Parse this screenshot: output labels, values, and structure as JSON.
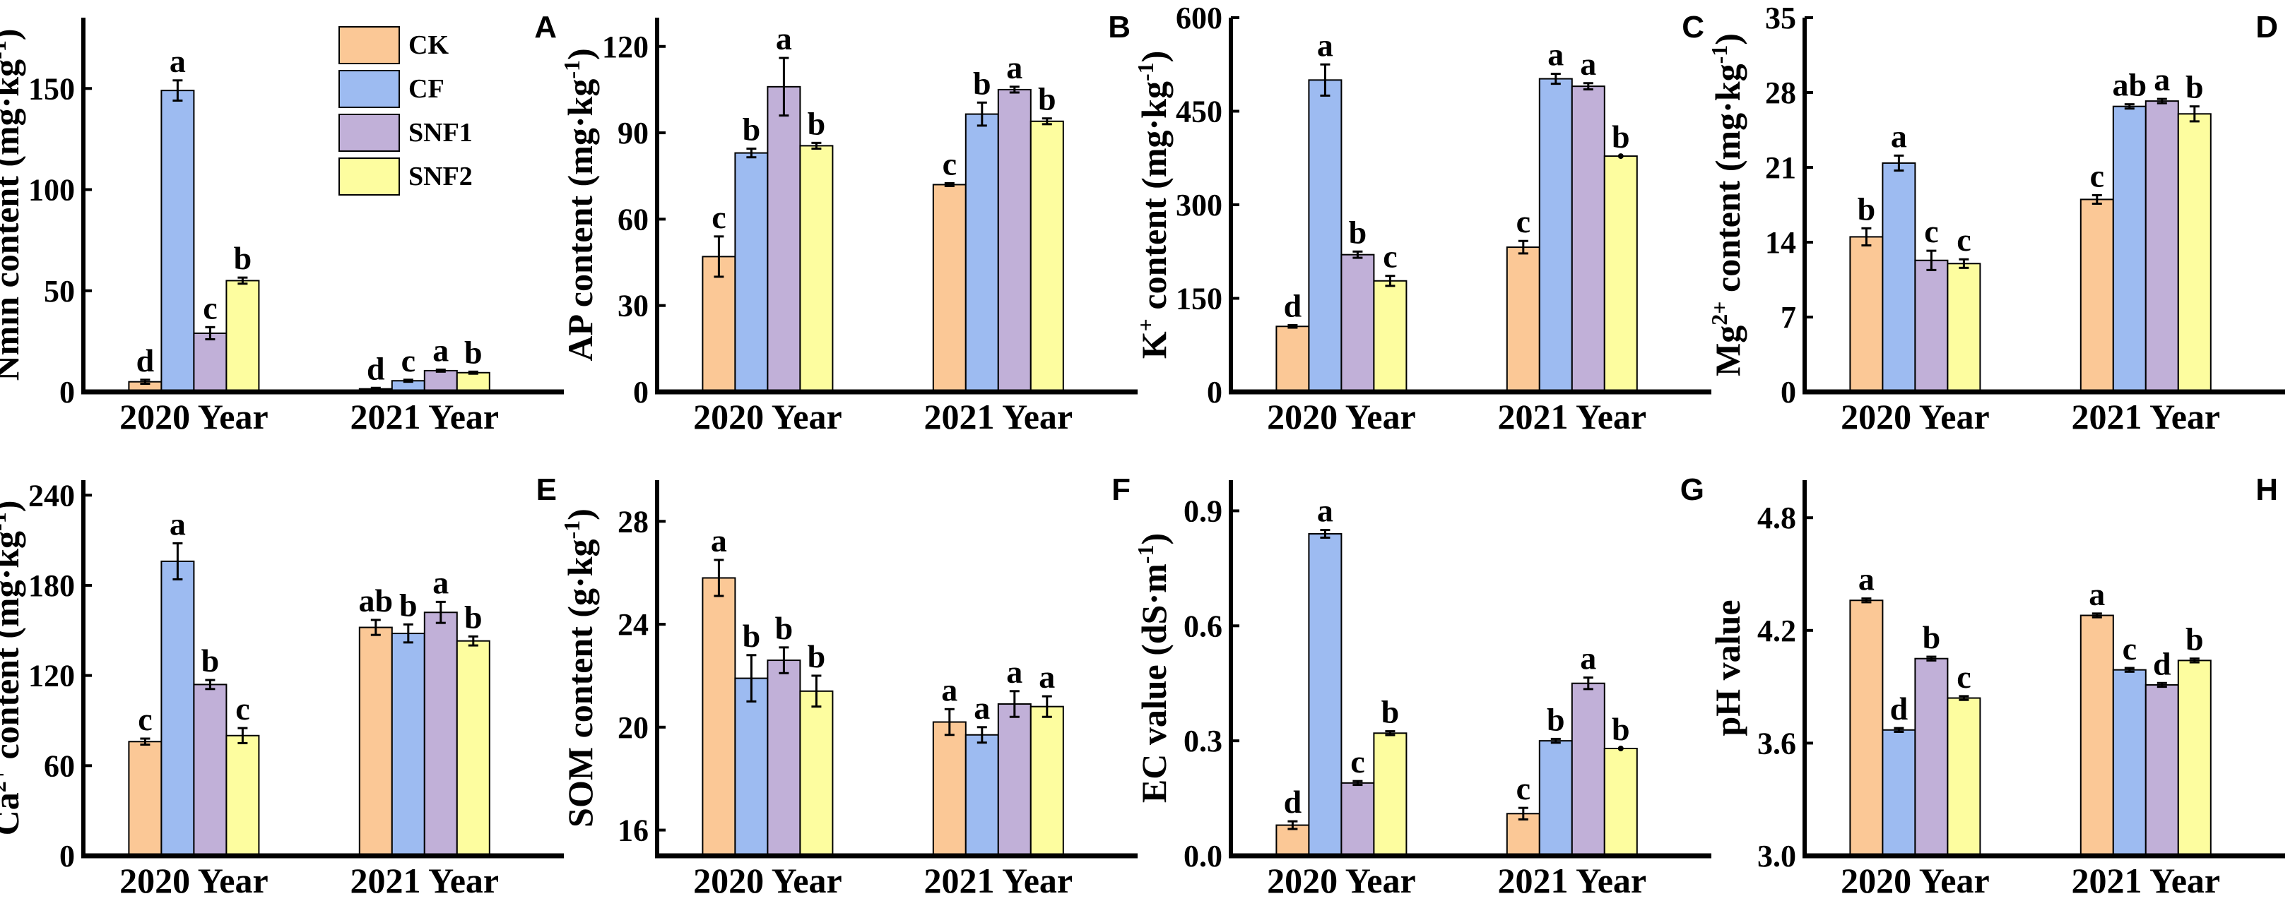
{
  "chart_data": {
    "type": "bar",
    "groups": [
      "2020 Year",
      "2021 Year"
    ],
    "series_names": [
      "CK",
      "CF",
      "SNF1",
      "SNF2"
    ],
    "colors": {
      "CK": "#fbc896",
      "CF": "#9dbbf1",
      "SNF1": "#c1b0d8",
      "SNF2": "#fdfd9f"
    },
    "legend": {
      "entries": [
        "CK",
        "CF",
        "SNF1",
        "SNF2"
      ],
      "placement": "top-right of panel A"
    },
    "panels": [
      {
        "label": "A",
        "ylabel": [
          {
            "t": "Nmin content (mg·kg"
          },
          {
            "t": "-1",
            "sup": true
          },
          {
            "t": ")"
          }
        ],
        "ylim": [
          0,
          185
        ],
        "yticks": [
          "0",
          "50",
          "100",
          "150"
        ],
        "ytick_values": [
          0,
          50,
          100,
          150
        ],
        "values": [
          [
            5,
            149,
            29,
            55
          ],
          [
            1.5,
            5.5,
            10.5,
            9.5
          ]
        ],
        "errors": [
          [
            1,
            5,
            3,
            1.5
          ],
          [
            0.5,
            0.5,
            0.5,
            0.5
          ]
        ],
        "letters": [
          [
            "d",
            "a",
            "c",
            "b"
          ],
          [
            "d",
            "c",
            "a",
            "b"
          ]
        ]
      },
      {
        "label": "B",
        "ylabel": [
          {
            "t": "AP content (mg·kg"
          },
          {
            "t": "-1",
            "sup": true
          },
          {
            "t": ")"
          }
        ],
        "ylim": [
          0,
          130
        ],
        "yticks": [
          "0",
          "30",
          "60",
          "90",
          "120"
        ],
        "ytick_values": [
          0,
          30,
          60,
          90,
          120
        ],
        "values": [
          [
            47,
            83,
            106,
            85.5
          ],
          [
            72,
            96.5,
            105,
            94
          ]
        ],
        "errors": [
          [
            7,
            1.5,
            10,
            1
          ],
          [
            0.5,
            4,
            1,
            1
          ]
        ],
        "letters": [
          [
            "c",
            "b",
            "a",
            "b"
          ],
          [
            "c",
            "b",
            "a",
            "b"
          ]
        ]
      },
      {
        "label": "C",
        "ylabel": [
          {
            "t": "K"
          },
          {
            "t": "+",
            "sup": true
          },
          {
            "t": " content (mg·kg"
          },
          {
            "t": "-1",
            "sup": true
          },
          {
            "t": ")"
          }
        ],
        "ylim": [
          0,
          600
        ],
        "yticks": [
          "0",
          "150",
          "300",
          "450",
          "600"
        ],
        "ytick_values": [
          0,
          150,
          300,
          450,
          600
        ],
        "values": [
          [
            105,
            500,
            220,
            178
          ],
          [
            232,
            502,
            490,
            378
          ]
        ],
        "errors": [
          [
            2,
            25,
            5,
            8
          ],
          [
            10,
            8,
            5,
            0
          ]
        ],
        "letters": [
          [
            "d",
            "a",
            "b",
            "c"
          ],
          [
            "c",
            "a",
            "a",
            "b"
          ]
        ]
      },
      {
        "label": "D",
        "ylabel": [
          {
            "t": "Mg"
          },
          {
            "t": "2+",
            "sup": true
          },
          {
            "t": " content (mg·kg"
          },
          {
            "t": "-1",
            "sup": true
          },
          {
            "t": ")"
          }
        ],
        "ylim": [
          0,
          35
        ],
        "yticks": [
          "0",
          "7",
          "14",
          "21",
          "28",
          "35"
        ],
        "ytick_values": [
          0,
          7,
          14,
          21,
          28,
          35
        ],
        "values": [
          [
            14.5,
            21.4,
            12.3,
            12
          ],
          [
            18,
            26.7,
            27.2,
            26
          ]
        ],
        "errors": [
          [
            0.8,
            0.7,
            0.9,
            0.4
          ],
          [
            0.4,
            0.2,
            0.2,
            0.7
          ]
        ],
        "letters": [
          [
            "b",
            "a",
            "c",
            "c"
          ],
          [
            "c",
            "ab",
            "a",
            "b"
          ]
        ]
      },
      {
        "label": "E",
        "ylabel": [
          {
            "t": "Ca"
          },
          {
            "t": "2+",
            "sup": true
          },
          {
            "t": " content (mg·kg"
          },
          {
            "t": "-1",
            "sup": true
          },
          {
            "t": ")"
          }
        ],
        "ylim": [
          0,
          250
        ],
        "yticks": [
          "0",
          "60",
          "120",
          "180",
          "240"
        ],
        "ytick_values": [
          0,
          60,
          120,
          180,
          240
        ],
        "values": [
          [
            76,
            196,
            114,
            80
          ],
          [
            152,
            148,
            162,
            143
          ]
        ],
        "errors": [
          [
            2,
            12,
            3,
            5
          ],
          [
            5,
            6,
            7,
            3
          ]
        ],
        "letters": [
          [
            "c",
            "a",
            "b",
            "c"
          ],
          [
            "ab",
            "b",
            "a",
            "b"
          ]
        ]
      },
      {
        "label": "F",
        "ylabel": [
          {
            "t": "SOM content (g·kg"
          },
          {
            "t": "-1",
            "sup": true
          },
          {
            "t": ")"
          }
        ],
        "ylim": [
          15,
          29.6
        ],
        "yticks": [
          "16",
          "20",
          "24",
          "28"
        ],
        "ytick_values": [
          16,
          20,
          24,
          28
        ],
        "values": [
          [
            25.8,
            21.9,
            22.6,
            21.4
          ],
          [
            20.2,
            19.7,
            20.9,
            20.8
          ]
        ],
        "errors": [
          [
            0.7,
            0.9,
            0.5,
            0.6
          ],
          [
            0.5,
            0.3,
            0.5,
            0.4
          ]
        ],
        "letters": [
          [
            "a",
            "b",
            "b",
            "b"
          ],
          [
            "a",
            "a",
            "a",
            "a"
          ]
        ]
      },
      {
        "label": "G",
        "ylabel": [
          {
            "t": "EC value (dS·m"
          },
          {
            "t": "-1",
            "sup": true
          },
          {
            "t": ")"
          }
        ],
        "ylim": [
          0,
          0.98
        ],
        "yticks": [
          "0.0",
          "0.3",
          "0.6",
          "0.9"
        ],
        "ytick_values": [
          0,
          0.3,
          0.6,
          0.9
        ],
        "values": [
          [
            0.08,
            0.84,
            0.19,
            0.32
          ],
          [
            0.11,
            0.3,
            0.45,
            0.28
          ]
        ],
        "errors": [
          [
            0.01,
            0.01,
            0.005,
            0.005
          ],
          [
            0.015,
            0.005,
            0.015,
            0
          ]
        ],
        "letters": [
          [
            "d",
            "a",
            "c",
            "b"
          ],
          [
            "c",
            "b",
            "a",
            "b"
          ]
        ]
      },
      {
        "label": "H",
        "ylabel": [
          {
            "t": "pH value"
          }
        ],
        "ylim": [
          3.0,
          5.0
        ],
        "yticks": [
          "3.0",
          "3.6",
          "4.2",
          "4.8"
        ],
        "ytick_values": [
          3.0,
          3.6,
          4.2,
          4.8
        ],
        "values": [
          [
            4.36,
            3.67,
            4.05,
            3.84
          ],
          [
            4.28,
            3.99,
            3.91,
            4.04
          ]
        ],
        "errors": [
          [
            0.01,
            0.01,
            0.01,
            0.01
          ],
          [
            0.01,
            0.01,
            0.01,
            0.01
          ]
        ],
        "letters": [
          [
            "a",
            "d",
            "b",
            "c"
          ],
          [
            "a",
            "c",
            "d",
            "b"
          ]
        ]
      }
    ]
  }
}
